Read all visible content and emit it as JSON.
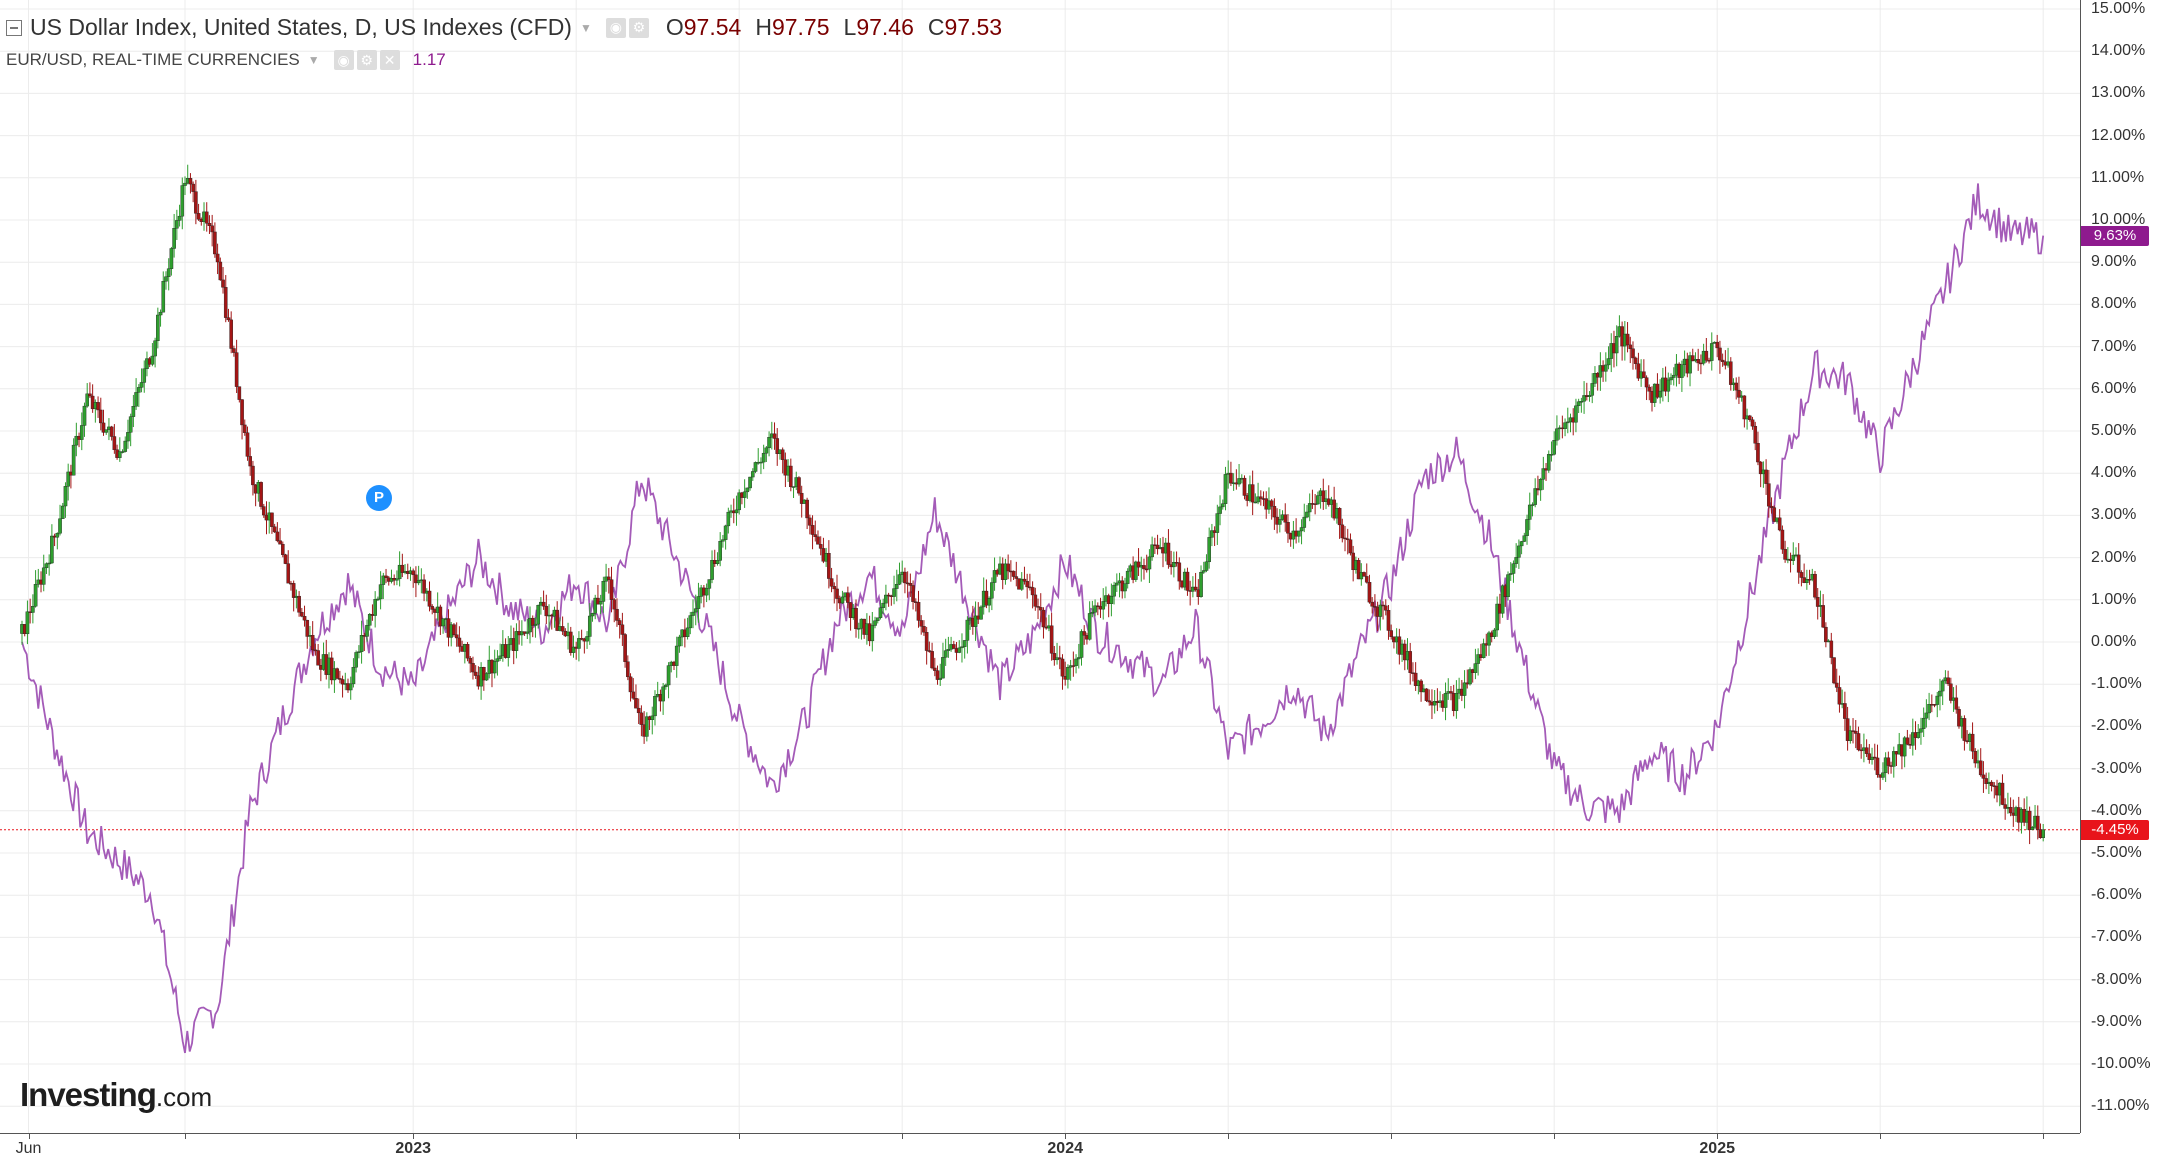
{
  "legend": {
    "main_title": "US Dollar Index, United States, D, US Indexes (CFD)",
    "ohlc": [
      {
        "key": "O",
        "value": "97.54"
      },
      {
        "key": "H",
        "value": "97.75"
      },
      {
        "key": "L",
        "value": "97.46"
      },
      {
        "key": "C",
        "value": "97.53"
      }
    ],
    "secondary_title": "EUR/USD, REAL-TIME CURRENCIES",
    "secondary_value": "1.17",
    "caret_icon": "chevron-down-icon"
  },
  "badges": {
    "usd_last": "-4.45%",
    "eur_last": "9.63%"
  },
  "pin_label": "P",
  "watermark": {
    "brand": "Investing",
    "suffix": ".com"
  },
  "colors": {
    "up_candle": "#2e9e2e",
    "down_candle": "#a31515",
    "eur_line": "#a45bb8",
    "usd_badge": "#e8141b",
    "eur_badge": "#8e1a8e",
    "gridline": "#ececec"
  },
  "chart_data": {
    "type": "line",
    "comparison": "percent change",
    "y_axis": {
      "ticks": [
        "15.00%",
        "14.00%",
        "13.00%",
        "12.00%",
        "11.00%",
        "10.00%",
        "9.00%",
        "8.00%",
        "7.00%",
        "6.00%",
        "5.00%",
        "4.00%",
        "3.00%",
        "2.00%",
        "1.00%",
        "0.00%",
        "-1.00%",
        "-2.00%",
        "-3.00%",
        "-4.00%",
        "-5.00%",
        "-6.00%",
        "-7.00%",
        "-8.00%",
        "-9.00%",
        "-10.00%",
        "-11.00%"
      ],
      "range": [
        -11.5,
        15.2
      ],
      "position": "right"
    },
    "x_axis": {
      "labels": [
        {
          "text": "Jun",
          "t": 0.2,
          "bold": false
        },
        {
          "text": "2023",
          "t": 12,
          "bold": true
        },
        {
          "text": "2024",
          "t": 32,
          "bold": true
        },
        {
          "text": "2025",
          "t": 52,
          "bold": true
        }
      ],
      "range": [
        0,
        62.5
      ],
      "ticks": [
        0.2,
        5,
        12,
        17,
        22,
        27,
        32,
        37,
        42,
        47,
        52,
        57,
        62
      ]
    },
    "grid": true,
    "series": [
      {
        "name": "US Dollar Index",
        "style": "candlestick",
        "x": [
          0,
          1,
          2,
          3,
          4,
          5,
          6,
          7,
          8,
          9,
          10,
          11,
          12,
          13,
          14,
          15,
          16,
          17,
          18,
          19,
          20,
          21,
          22,
          23,
          24,
          25,
          26,
          27,
          28,
          29,
          30,
          31,
          32,
          33,
          34,
          35,
          36,
          37,
          38,
          39,
          40,
          41,
          42,
          43,
          44,
          45,
          46,
          47,
          48,
          49,
          50,
          51,
          52,
          53,
          54,
          55,
          56,
          57,
          58,
          59,
          60,
          61,
          62
        ],
        "values": [
          0.2,
          2.5,
          5.8,
          4.5,
          7.0,
          11.0,
          9.2,
          4.1,
          1.9,
          -0.3,
          -1.0,
          1.4,
          1.7,
          0.4,
          -0.8,
          -0.1,
          0.9,
          -0.2,
          1.5,
          -2.2,
          -0.4,
          1.5,
          3.5,
          4.8,
          3.3,
          1.2,
          0.1,
          1.8,
          -0.8,
          0.3,
          1.7,
          1.2,
          -0.9,
          0.9,
          1.6,
          2.3,
          1.0,
          4.0,
          3.3,
          2.6,
          3.6,
          1.6,
          0.3,
          -1.2,
          -1.4,
          0.1,
          2.5,
          4.8,
          5.9,
          7.3,
          5.9,
          6.5,
          7.0,
          5.2,
          2.2,
          1.3,
          -2.2,
          -3.0,
          -2.2,
          -1.0,
          -2.9,
          -3.9,
          -4.45
        ]
      },
      {
        "name": "EUR/USD",
        "style": "line",
        "x": [
          0,
          1,
          2,
          3,
          4,
          5,
          6,
          7,
          8,
          9,
          10,
          11,
          12,
          13,
          14,
          15,
          16,
          17,
          18,
          19,
          20,
          21,
          22,
          23,
          24,
          25,
          26,
          27,
          28,
          29,
          30,
          31,
          32,
          33,
          34,
          35,
          36,
          37,
          38,
          39,
          40,
          41,
          42,
          43,
          44,
          45,
          46,
          47,
          48,
          49,
          50,
          51,
          52,
          53,
          54,
          55,
          56,
          57,
          58,
          59,
          60,
          61,
          62
        ],
        "values": [
          0.0,
          -2.4,
          -4.5,
          -5.2,
          -6.0,
          -9.5,
          -8.6,
          -4.0,
          -1.8,
          0.2,
          1.4,
          -0.6,
          -1.1,
          0.6,
          2.0,
          0.8,
          0.3,
          1.5,
          0.4,
          3.9,
          2.1,
          0.3,
          -1.9,
          -3.4,
          -1.9,
          0.5,
          1.6,
          0.2,
          3.1,
          1.0,
          -1.0,
          0.1,
          1.9,
          0.2,
          -0.4,
          -1.0,
          0.4,
          -2.6,
          -1.9,
          -1.0,
          -2.2,
          -0.3,
          1.4,
          3.9,
          4.5,
          2.5,
          -0.3,
          -3.0,
          -3.9,
          -4.0,
          -2.6,
          -3.2,
          -2.0,
          1.0,
          4.0,
          6.5,
          6.2,
          4.4,
          6.5,
          8.4,
          10.5,
          9.63,
          9.63
        ]
      }
    ]
  }
}
